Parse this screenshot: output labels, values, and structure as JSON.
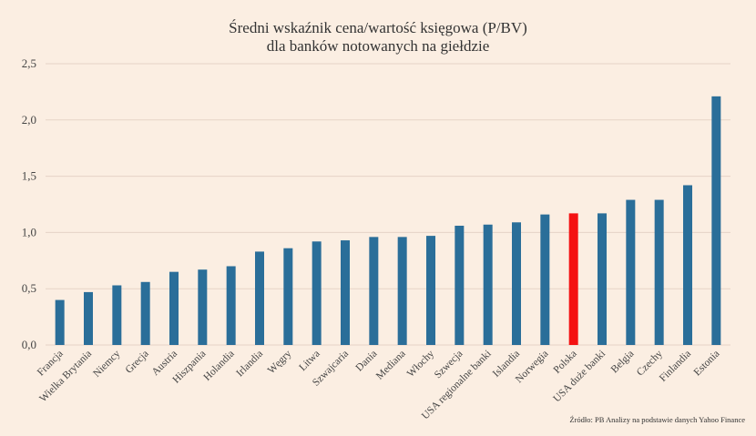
{
  "chart_data": {
    "type": "bar",
    "title_line1": "Średni wskaźnik cena/wartość księgowa (P/BV)",
    "title_line2": "dla banków notowanych na giełdzie",
    "xlabel": "",
    "ylabel": "",
    "ylim": [
      0,
      2.5
    ],
    "yticks": [
      "0,0",
      "0,5",
      "1,0",
      "1,5",
      "2,0",
      "2,5"
    ],
    "grid": true,
    "categories": [
      "Francja",
      "Wielka Brytania",
      "Niemcy",
      "Grecja",
      "Austria",
      "Hiszpania",
      "Holandia",
      "Irlandia",
      "Węgry",
      "Litwa",
      "Szwajcaria",
      "Dania",
      "Mediana",
      "Włochy",
      "Szwecja",
      "USA regionalne banki",
      "Islandia",
      "Norwegia",
      "Polska",
      "USA duże banki",
      "Belgia",
      "Czechy",
      "Finlandia",
      "Estonia"
    ],
    "values": [
      0.4,
      0.47,
      0.53,
      0.56,
      0.65,
      0.67,
      0.7,
      0.83,
      0.86,
      0.92,
      0.93,
      0.96,
      0.96,
      0.97,
      1.06,
      1.07,
      1.09,
      1.16,
      1.17,
      1.17,
      1.29,
      1.29,
      1.42,
      2.21
    ],
    "bar_color": "#2a6e99",
    "highlight_color": "#f41212",
    "highlight_category": "Polska",
    "source": "Źródło: PB Analizy na podstawie danych Yahoo Finance"
  },
  "colors": {
    "background": "#fbeee2",
    "grid": "#e6d3c6",
    "text": "#333333"
  }
}
